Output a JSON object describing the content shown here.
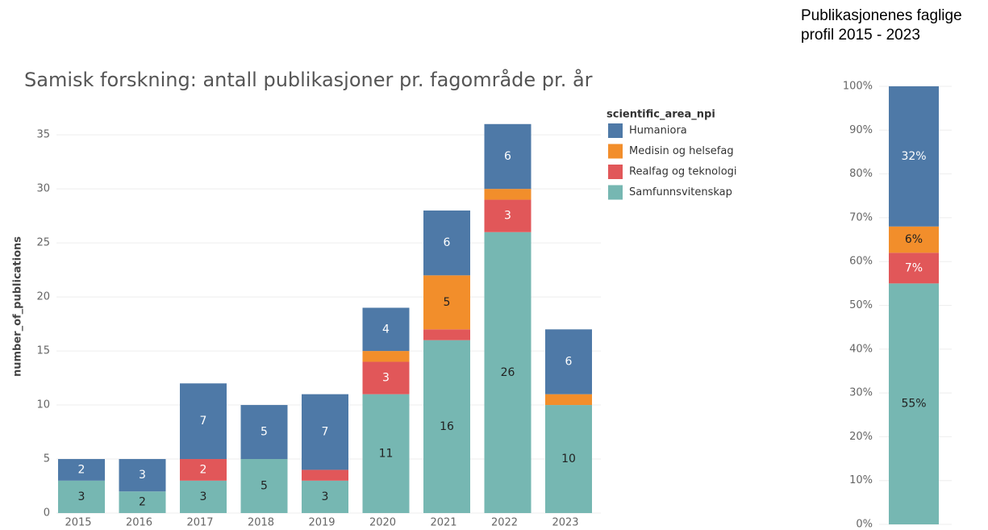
{
  "chart_data": [
    {
      "type": "bar",
      "stacked": true,
      "title": "Samisk forskning: antall publikasjoner pr. fagområde pr. år",
      "y_label": "number_of_publications",
      "legend_title": "scientific_area_npi",
      "categories": [
        "2015",
        "2016",
        "2017",
        "2018",
        "2019",
        "2020",
        "2021",
        "2022",
        "2023"
      ],
      "series": [
        {
          "name": "Humaniora",
          "color": "#4e79a7",
          "values": [
            2,
            3,
            7,
            5,
            7,
            4,
            6,
            6,
            6
          ],
          "value_labels": [
            "2",
            "3",
            "7",
            "5",
            "7",
            "4",
            "6",
            "6",
            "6"
          ]
        },
        {
          "name": "Medisin og helsefag",
          "color": "#f28e2b",
          "values": [
            0,
            0,
            0,
            0,
            0,
            1,
            5,
            1,
            1
          ],
          "value_labels": [
            null,
            null,
            null,
            null,
            null,
            null,
            "5",
            null,
            null
          ]
        },
        {
          "name": "Realfag og teknologi",
          "color": "#e15759",
          "values": [
            0,
            0,
            2,
            0,
            1,
            3,
            1,
            3,
            0
          ],
          "value_labels": [
            null,
            null,
            "2",
            null,
            null,
            "3",
            null,
            "3",
            null
          ]
        },
        {
          "name": "Samfunnsvitenskap",
          "color": "#76b7b2",
          "values": [
            3,
            2,
            3,
            5,
            3,
            11,
            16,
            26,
            10
          ],
          "value_labels": [
            "3",
            "2",
            "3",
            "5",
            "3",
            "11",
            "16",
            "26",
            "10"
          ]
        }
      ],
      "ylim": [
        0,
        38
      ],
      "yticks": [
        0,
        5,
        10,
        15,
        20,
        25,
        30,
        35
      ],
      "grid": true,
      "legend": "right"
    },
    {
      "type": "bar",
      "stacked": true,
      "title": "Publikasjonenes faglige profil 2015 - 2023",
      "series": [
        {
          "name": "Humaniora",
          "color": "#4e79a7",
          "values": [
            32
          ],
          "value_labels": [
            "32%"
          ]
        },
        {
          "name": "Medisin og helsefag",
          "color": "#f28e2b",
          "values": [
            6
          ],
          "value_labels": [
            "6%"
          ]
        },
        {
          "name": "Realfag og teknologi",
          "color": "#e15759",
          "values": [
            7
          ],
          "value_labels": [
            "7%"
          ]
        },
        {
          "name": "Samfunnsvitenskap",
          "color": "#76b7b2",
          "values": [
            55
          ],
          "value_labels": [
            "55%"
          ]
        }
      ],
      "ylim": [
        0,
        100
      ],
      "yticks": [
        {
          "value": 0,
          "label": "0%"
        },
        {
          "value": 10,
          "label": "10%"
        },
        {
          "value": 20,
          "label": "20%"
        },
        {
          "value": 30,
          "label": "30%"
        },
        {
          "value": 40,
          "label": "40%"
        },
        {
          "value": 50,
          "label": "50%"
        },
        {
          "value": 60,
          "label": "60%"
        },
        {
          "value": 70,
          "label": "70%"
        },
        {
          "value": 80,
          "label": "80%"
        },
        {
          "value": 90,
          "label": "90%"
        },
        {
          "value": 100,
          "label": "100%"
        }
      ],
      "grid": true
    }
  ]
}
